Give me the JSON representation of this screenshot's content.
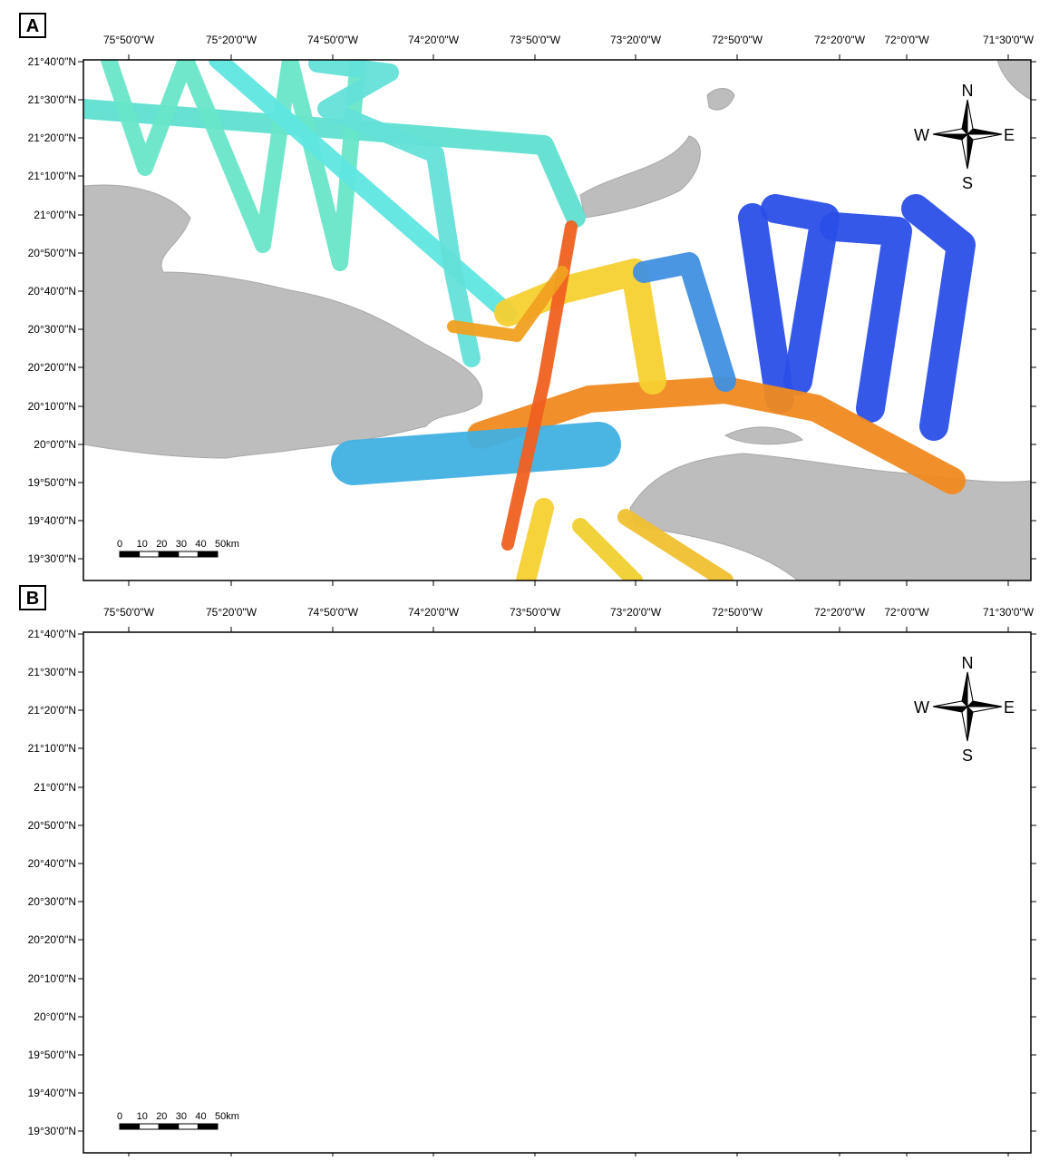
{
  "panels": [
    {
      "label": "A"
    },
    {
      "label": "B"
    }
  ],
  "longitude_labels": [
    "75°50'0\"W",
    "75°20'0\"W",
    "74°50'0\"W",
    "74°20'0\"W",
    "73°50'0\"W",
    "73°20'0\"W",
    "72°50'0\"W",
    "72°20'0\"W",
    "72°0'0\"W",
    "71°30'0\"W"
  ],
  "latitude_labels": [
    "21°40'0\"N",
    "21°30'0\"N",
    "21°20'0\"N",
    "21°10'0\"N",
    "21°0'0\"N",
    "20°50'0\"N",
    "20°40'0\"N",
    "20°30'0\"N",
    "20°20'0\"N",
    "20°10'0\"N",
    "20°0'0\"N",
    "19°50'0\"N",
    "19°40'0\"N",
    "19°30'0\"N"
  ],
  "scale_bar": [
    "0",
    "10",
    "20",
    "30",
    "40",
    "50km"
  ],
  "compass": {
    "north": "N",
    "west": "W",
    "east": "E",
    "south": "S"
  }
}
